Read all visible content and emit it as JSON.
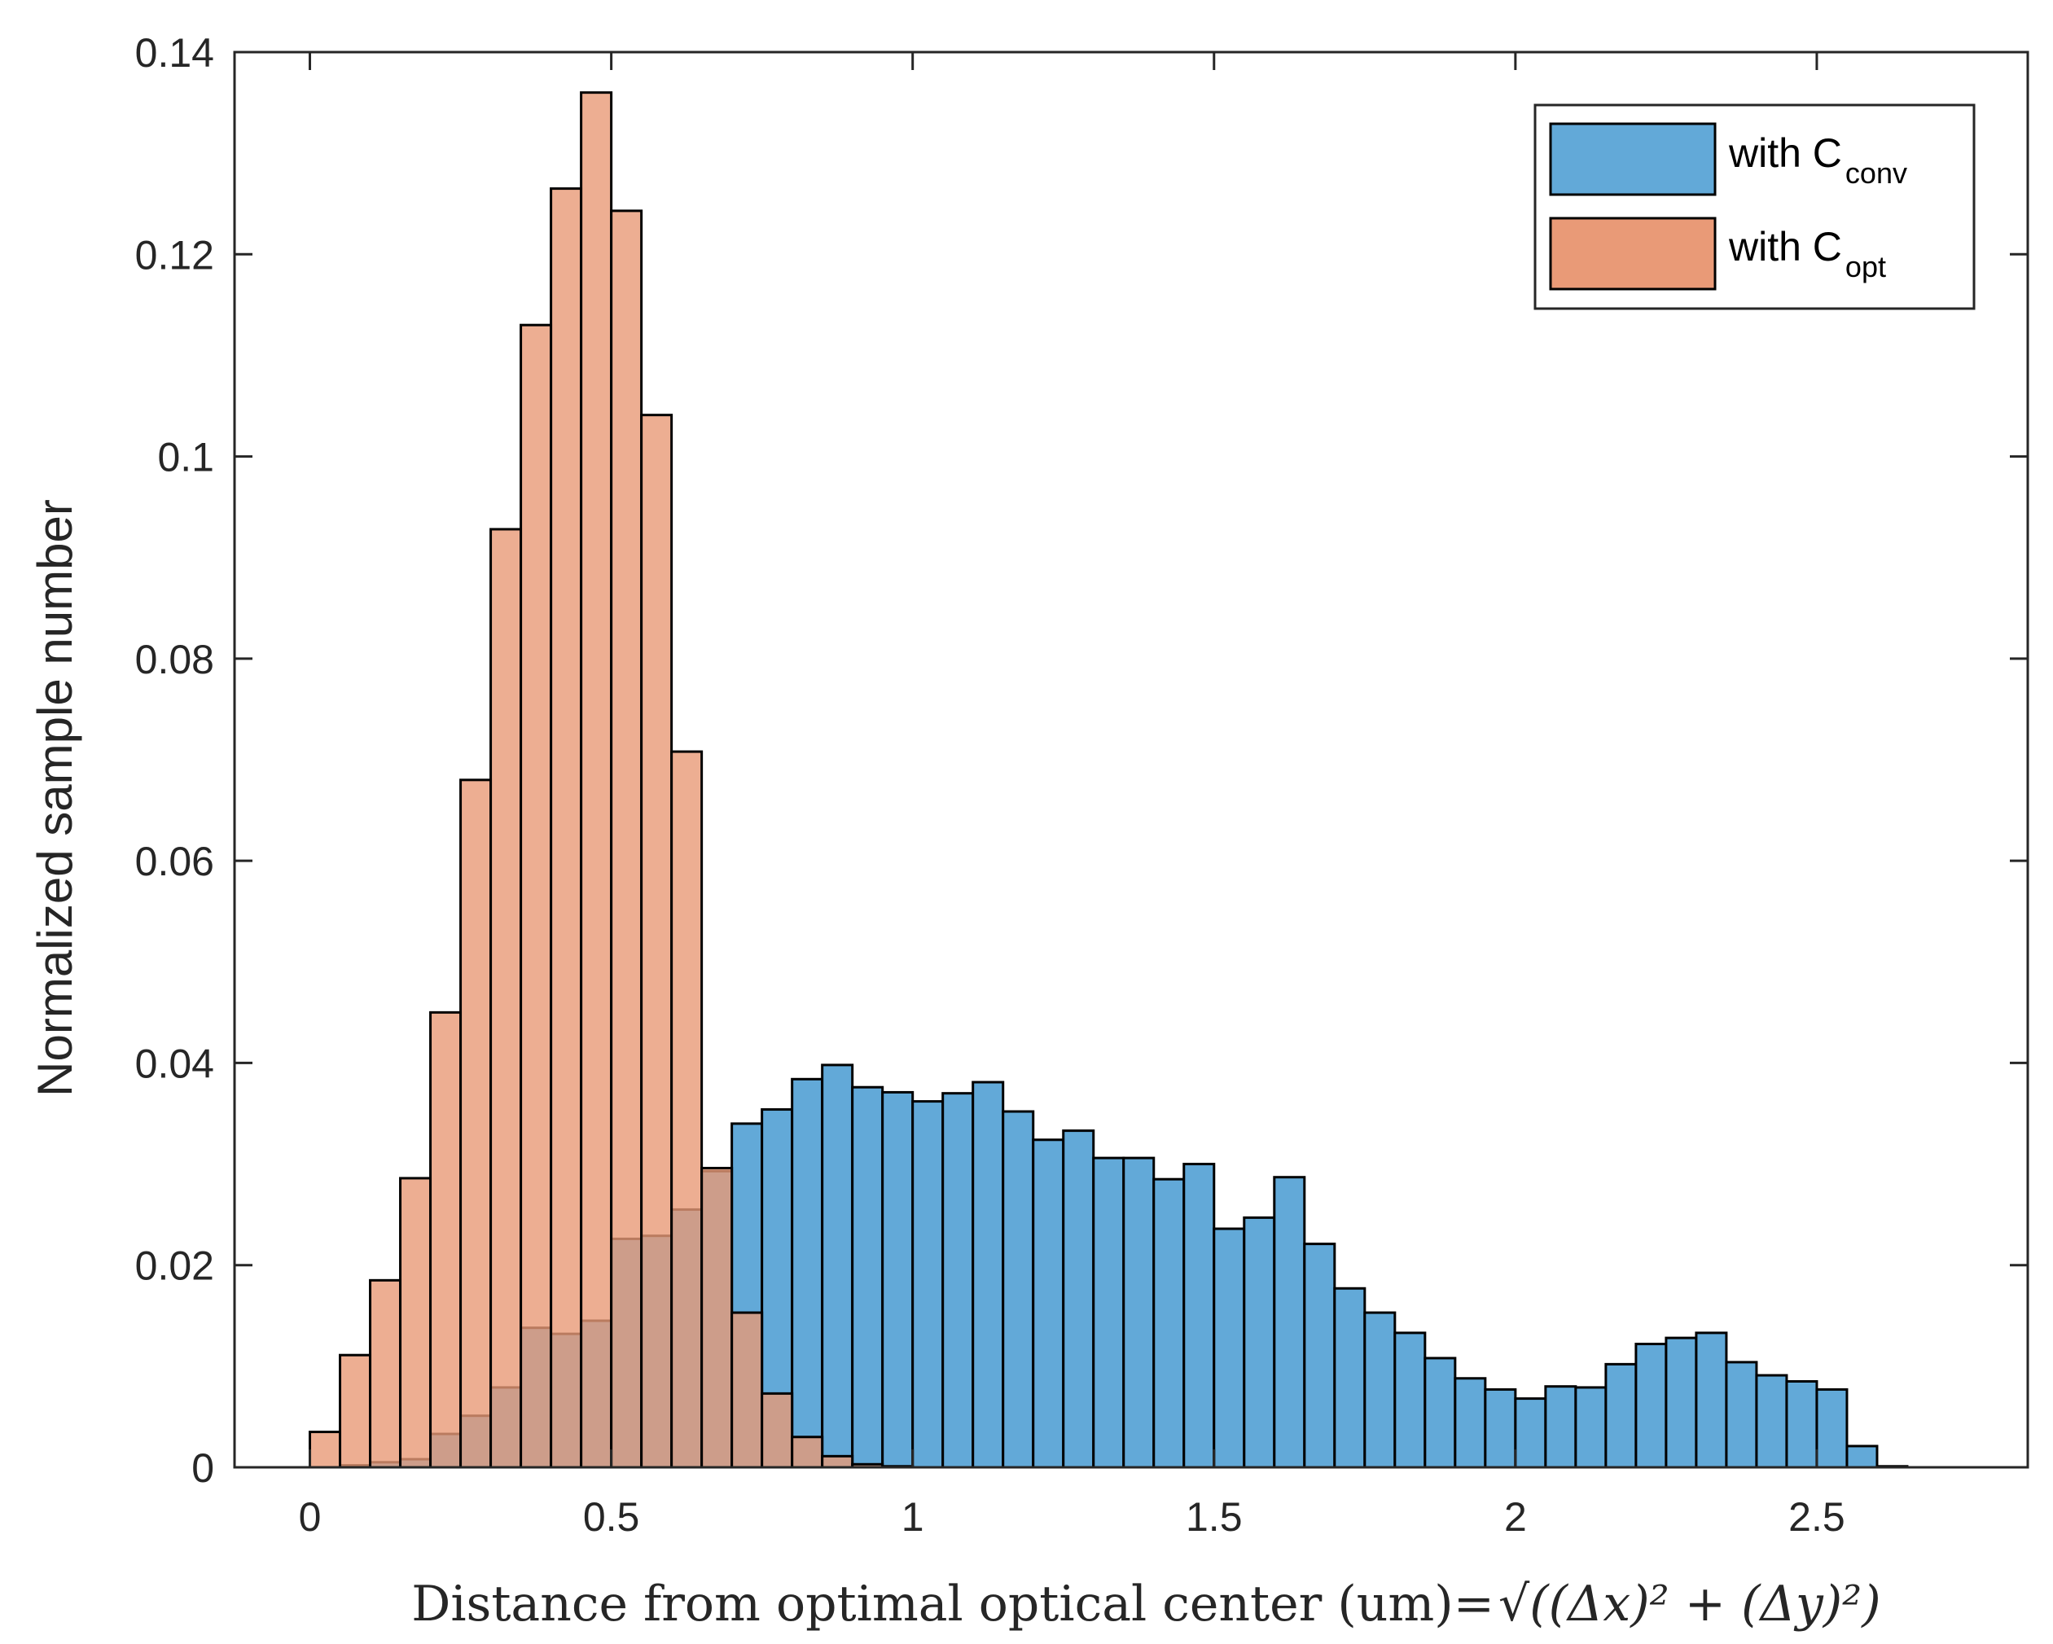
{
  "chart_data": {
    "type": "bar",
    "xlabel": "Distance from optimal optical center (um)=",
    "xlabel_formula": "√((Δx)² + (Δy)²)",
    "ylabel": "Normalized sample number",
    "xlim": [
      -0.125,
      2.85
    ],
    "ylim": [
      0,
      0.14
    ],
    "xticks": [
      0,
      0.5,
      1,
      1.5,
      2,
      2.5
    ],
    "xtick_labels": [
      "0",
      "0.5",
      "1",
      "1.5",
      "2",
      "2.5"
    ],
    "yticks": [
      0,
      0.02,
      0.04,
      0.06,
      0.08,
      0.1,
      0.12,
      0.14
    ],
    "ytick_labels": [
      "0",
      "0.02",
      "0.04",
      "0.06",
      "0.08",
      "0.1",
      "0.12",
      "0.14"
    ],
    "bin_width": 0.05,
    "bin_start": 0,
    "legend": {
      "position": "top-right",
      "entries": [
        {
          "prefix": "with C",
          "subscript": "conv"
        },
        {
          "prefix": "with C",
          "subscript": "opt"
        }
      ]
    },
    "series": [
      {
        "name": "with C_conv",
        "color": "#0072BD",
        "face_color": "#62A9D8",
        "values": [
          0,
          0.0002,
          0.0005,
          0.0008,
          0.0033,
          0.0051,
          0.0079,
          0.0138,
          0.0132,
          0.0145,
          0.0226,
          0.0229,
          0.0255,
          0.0293,
          0.034,
          0.0354,
          0.0384,
          0.0398,
          0.0376,
          0.0371,
          0.0362,
          0.037,
          0.0381,
          0.0352,
          0.0324,
          0.0333,
          0.0306,
          0.0306,
          0.0285,
          0.03,
          0.0236,
          0.0247,
          0.0287,
          0.0221,
          0.0177,
          0.0153,
          0.0133,
          0.0108,
          0.0088,
          0.0077,
          0.0068,
          0.008,
          0.0079,
          0.0102,
          0.0122,
          0.0128,
          0.0133,
          0.0104,
          0.0091,
          0.0085,
          0.0077,
          0.0021,
          0.0001
        ]
      },
      {
        "name": "with C_opt",
        "color": "#D95319",
        "face_color": "#E99A77",
        "values": [
          0.0035,
          0.0111,
          0.0185,
          0.0286,
          0.045,
          0.068,
          0.0928,
          0.113,
          0.1265,
          0.136,
          0.1243,
          0.1041,
          0.0708,
          0.0296,
          0.0153,
          0.0073,
          0.003,
          0.0011,
          0.0003,
          0.0001,
          0,
          0,
          0,
          0,
          0,
          0,
          0,
          0,
          0,
          0,
          0,
          0,
          0,
          0,
          0,
          0,
          0,
          0,
          0,
          0,
          0,
          0,
          0,
          0,
          0,
          0,
          0,
          0,
          0,
          0,
          0,
          0,
          0
        ]
      }
    ]
  }
}
